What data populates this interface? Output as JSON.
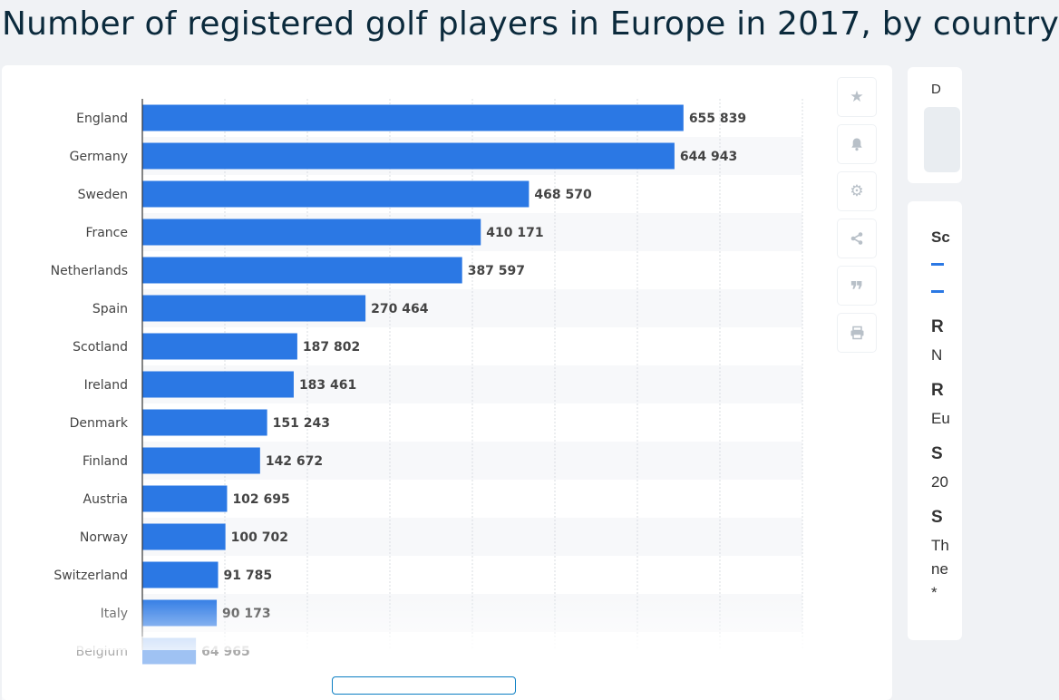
{
  "page_title": "Number of registered golf players in Europe in 2017, by country",
  "toolbar": {
    "icons": [
      "star-icon",
      "bell-icon",
      "gear-icon",
      "share-icon",
      "quote-icon",
      "print-icon"
    ]
  },
  "right_panel": {
    "top_label": "D",
    "tab_label": "Sc",
    "lines": [
      {
        "text": "R",
        "bold": true,
        "top": 130
      },
      {
        "text": "N",
        "bold": false,
        "top": 162
      },
      {
        "text": "R",
        "bold": true,
        "top": 200
      },
      {
        "text": "Eu",
        "bold": false,
        "top": 232
      },
      {
        "text": "S",
        "bold": true,
        "top": 270
      },
      {
        "text": "20",
        "bold": false,
        "top": 302
      },
      {
        "text": "S",
        "bold": true,
        "top": 340
      },
      {
        "text": "Th",
        "bold": false,
        "top": 372
      },
      {
        "text": "ne",
        "bold": false,
        "top": 398
      },
      {
        "text": "*",
        "bold": false,
        "top": 424
      }
    ]
  },
  "chart_data": {
    "type": "bar",
    "orientation": "horizontal",
    "categories": [
      "England",
      "Germany",
      "Sweden",
      "France",
      "Netherlands",
      "Spain",
      "Scotland",
      "Ireland",
      "Denmark",
      "Finland",
      "Austria",
      "Norway",
      "Switzerland",
      "Italy",
      "Belgium"
    ],
    "values": [
      655839,
      644943,
      468570,
      410171,
      387597,
      270464,
      187802,
      183461,
      151243,
      142672,
      102695,
      100702,
      91785,
      90173,
      64965
    ],
    "value_labels": [
      "655 839",
      "644 943",
      "468 570",
      "410 171",
      "387 597",
      "270 464",
      "187 802",
      "183 461",
      "151 243",
      "142 672",
      "102 695",
      "100 702",
      "91 785",
      "90 173",
      "64 965"
    ],
    "xlim": [
      0,
      800000
    ],
    "grid": true,
    "bar_color": "#2b78e4",
    "title": "Number of registered golf players in Europe in 2017, by country"
  }
}
